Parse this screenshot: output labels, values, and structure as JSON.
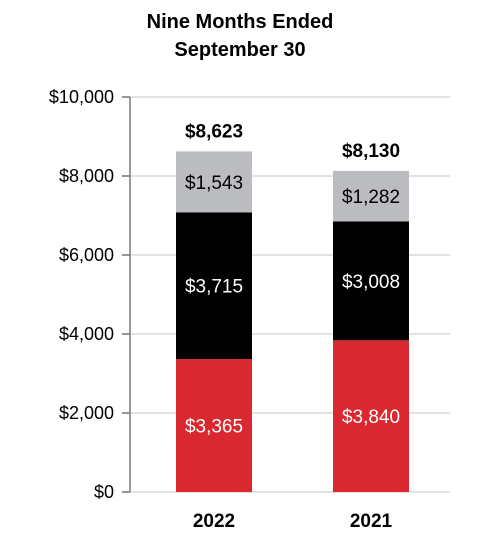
{
  "chart_data": {
    "type": "bar",
    "stacked": true,
    "title_line1": "Nine Months Ended",
    "title_line2": "September 30",
    "xlabel": "",
    "ylabel": "",
    "ylim": [
      0,
      10000
    ],
    "yticks": [
      0,
      2000,
      4000,
      6000,
      8000,
      10000
    ],
    "ytick_labels": [
      "$0",
      "$2,000",
      "$4,000",
      "$6,000",
      "$8,000",
      "$10,000"
    ],
    "grid": true,
    "categories": [
      "2022",
      "2021"
    ],
    "totals": [
      8623,
      8130
    ],
    "total_labels": [
      "$8,623",
      "$8,130"
    ],
    "series": [
      {
        "values": [
          3365,
          3840
        ],
        "labels": [
          "$3,365",
          "$3,840"
        ],
        "color": "#d9282f",
        "label_color": "#ffffff"
      },
      {
        "values": [
          3715,
          3008
        ],
        "labels": [
          "$3,715",
          "$3,008"
        ],
        "color": "#000000",
        "label_color": "#ffffff"
      },
      {
        "values": [
          1543,
          1282
        ],
        "labels": [
          "$1,543",
          "$1,282"
        ],
        "color": "#bbbcbf",
        "label_color": "#000000"
      }
    ]
  }
}
